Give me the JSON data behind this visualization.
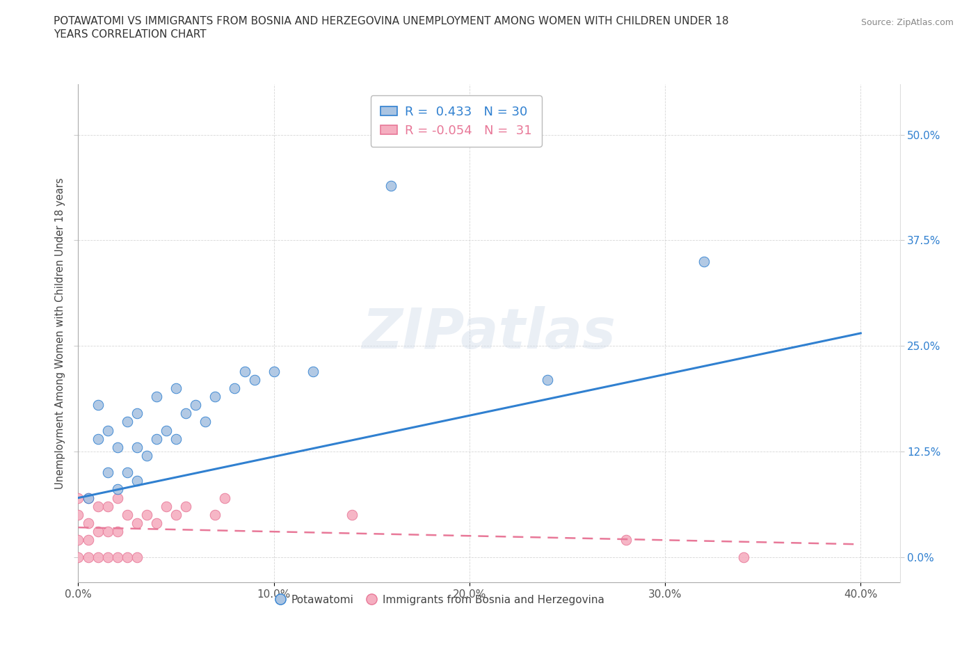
{
  "title_line1": "POTAWATOMI VS IMMIGRANTS FROM BOSNIA AND HERZEGOVINA UNEMPLOYMENT AMONG WOMEN WITH CHILDREN UNDER 18",
  "title_line2": "YEARS CORRELATION CHART",
  "source": "Source: ZipAtlas.com",
  "ylabel": "Unemployment Among Women with Children Under 18 years",
  "xlim": [
    0.0,
    0.42
  ],
  "ylim": [
    -0.03,
    0.56
  ],
  "yticks": [
    0.0,
    0.125,
    0.25,
    0.375,
    0.5
  ],
  "ytick_labels": [
    "0.0%",
    "12.5%",
    "25.0%",
    "37.5%",
    "50.0%"
  ],
  "xticks": [
    0.0,
    0.1,
    0.2,
    0.3,
    0.4
  ],
  "xtick_labels": [
    "0.0%",
    "10.0%",
    "20.0%",
    "30.0%",
    "40.0%"
  ],
  "blue_r": 0.433,
  "blue_n": 30,
  "pink_r": -0.054,
  "pink_n": 31,
  "blue_color": "#aac4e2",
  "pink_color": "#f5aec0",
  "blue_line_color": "#3080d0",
  "pink_line_color": "#e87898",
  "watermark": "ZIPatlas",
  "legend_label_blue": "Potawatomi",
  "legend_label_pink": "Immigrants from Bosnia and Herzegovina",
  "blue_scatter_x": [
    0.005,
    0.01,
    0.01,
    0.015,
    0.015,
    0.02,
    0.02,
    0.025,
    0.025,
    0.03,
    0.03,
    0.03,
    0.035,
    0.04,
    0.04,
    0.045,
    0.05,
    0.05,
    0.055,
    0.06,
    0.065,
    0.07,
    0.08,
    0.085,
    0.09,
    0.1,
    0.12,
    0.16,
    0.24,
    0.32
  ],
  "blue_scatter_y": [
    0.07,
    0.14,
    0.18,
    0.1,
    0.15,
    0.08,
    0.13,
    0.1,
    0.16,
    0.09,
    0.13,
    0.17,
    0.12,
    0.14,
    0.19,
    0.15,
    0.14,
    0.2,
    0.17,
    0.18,
    0.16,
    0.19,
    0.2,
    0.22,
    0.21,
    0.22,
    0.22,
    0.44,
    0.21,
    0.35
  ],
  "pink_scatter_x": [
    0.0,
    0.0,
    0.0,
    0.0,
    0.005,
    0.005,
    0.005,
    0.005,
    0.01,
    0.01,
    0.01,
    0.015,
    0.015,
    0.015,
    0.02,
    0.02,
    0.02,
    0.025,
    0.025,
    0.03,
    0.03,
    0.035,
    0.04,
    0.045,
    0.05,
    0.055,
    0.07,
    0.075,
    0.14,
    0.28,
    0.34
  ],
  "pink_scatter_y": [
    0.0,
    0.02,
    0.05,
    0.07,
    0.0,
    0.02,
    0.04,
    0.07,
    0.0,
    0.03,
    0.06,
    0.0,
    0.03,
    0.06,
    0.0,
    0.03,
    0.07,
    0.0,
    0.05,
    0.0,
    0.04,
    0.05,
    0.04,
    0.06,
    0.05,
    0.06,
    0.05,
    0.07,
    0.05,
    0.02,
    0.0
  ],
  "blue_line_x0": 0.0,
  "blue_line_y0": 0.07,
  "blue_line_x1": 0.4,
  "blue_line_y1": 0.265,
  "pink_line_x0": 0.0,
  "pink_line_y0": 0.035,
  "pink_line_x1": 0.4,
  "pink_line_y1": 0.015
}
